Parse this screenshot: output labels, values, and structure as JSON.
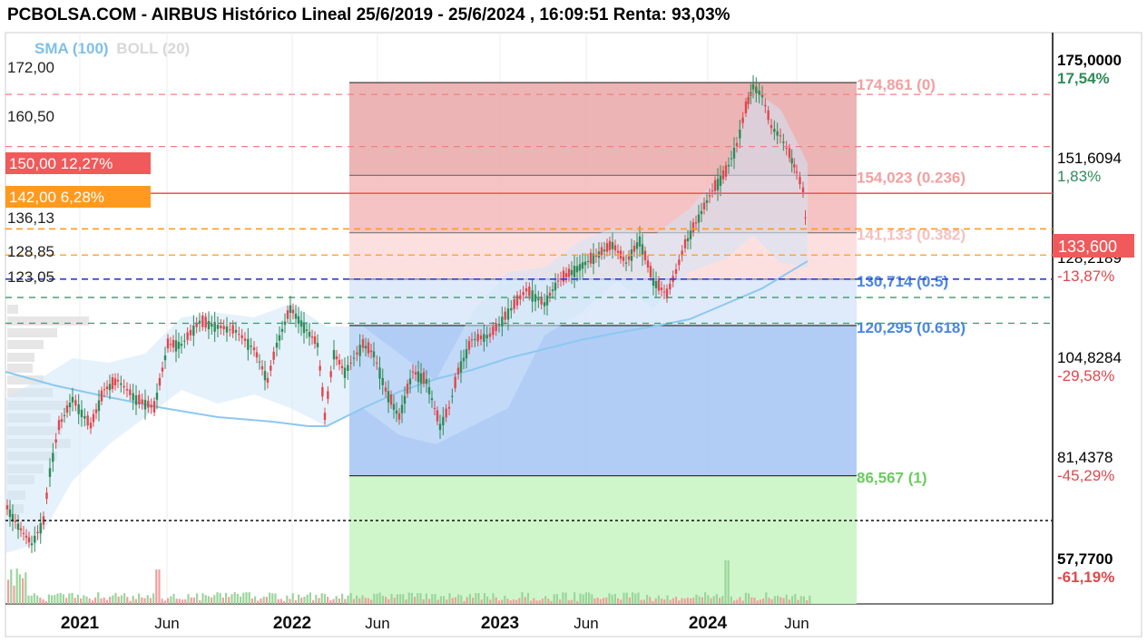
{
  "title": "PCBOLSA.COM - AIRBUS Histórico Lineal 25/6/2019 - 25/6/2024 , 16:09:51 Renta: 93,03%",
  "legend": {
    "sma": "SMA (100)",
    "boll": "BOLL (20)"
  },
  "colors": {
    "up": "#2e8b57",
    "down": "#e0474c",
    "fib_red": "#f08080",
    "fib_blue": "#6fa8f5",
    "fib_green": "#b9f2b3",
    "sma": "#8cc8f0",
    "boll_fill": "#cfe6f7",
    "orange": "#ff9a1f"
  },
  "chart_data": {
    "type": "candlestick",
    "title": "PCBOLSA.COM - AIRBUS Histórico Lineal 25/6/2019 - 25/6/2024 , 16:09:51 Renta: 93,03%",
    "ylim": [
      57.77,
      175.0
    ],
    "x_ticks": [
      {
        "label": "2021",
        "bold": true
      },
      {
        "label": "Jun",
        "bold": false
      },
      {
        "label": "2022",
        "bold": true
      },
      {
        "label": "Jun",
        "bold": false
      },
      {
        "label": "2023",
        "bold": true
      },
      {
        "label": "Jun",
        "bold": false
      },
      {
        "label": "2024",
        "bold": true
      },
      {
        "label": "Jun",
        "bold": false
      }
    ],
    "right_axis": [
      {
        "value": "175,0000",
        "pct": "17,54%",
        "bold": true,
        "pct_color": "#2e8b57"
      },
      {
        "value": "151,6094",
        "pct": "1,83%",
        "bold": false,
        "pct_color": "#2e8b57"
      },
      {
        "value": "128,2189",
        "pct": "-13,87%",
        "bold": false,
        "pct_color": "#e0474c"
      },
      {
        "value": "104,8284",
        "pct": "-29,58%",
        "bold": false,
        "pct_color": "#e0474c"
      },
      {
        "value": "81,4378",
        "pct": "-45,29%",
        "bold": false,
        "pct_color": "#e0474c"
      },
      {
        "value": "57,7700",
        "pct": "-61,19%",
        "bold": true,
        "pct_color": "#e0474c"
      }
    ],
    "current_price": {
      "label": "133,600",
      "value": 133.6
    },
    "left_levels": [
      {
        "label": "172,00",
        "value": 172.0
      },
      {
        "label": "160,50",
        "value": 160.5
      },
      {
        "label": "136,13",
        "value": 136.13
      },
      {
        "label": "128,85",
        "value": 128.85
      },
      {
        "label": "123,05",
        "value": 123.05
      }
    ],
    "alert_levels": [
      {
        "label": "150,00 12,27%",
        "value": 150.0,
        "color": "#f05a5a"
      },
      {
        "label": "142,00 6,28%",
        "value": 142.0,
        "color": "#ff9a1f"
      }
    ],
    "fibonacci": [
      {
        "label": "174,861 (0)",
        "value": 174.861,
        "color": "#f3a0a0"
      },
      {
        "label": "154,023 (0.236)",
        "value": 154.023,
        "color": "#f3a0a0"
      },
      {
        "label": "141,133 (0.382)",
        "value": 141.133,
        "color": "#f8c0c0"
      },
      {
        "label": "130,714 (0.5)",
        "value": 130.714,
        "color": "#4a86e8"
      },
      {
        "label": "120,295 (0.618)",
        "value": 120.295,
        "color": "#4a86e8"
      },
      {
        "label": "86,567 (1)",
        "value": 86.567,
        "color": "#6ccb5f"
      }
    ]
  }
}
